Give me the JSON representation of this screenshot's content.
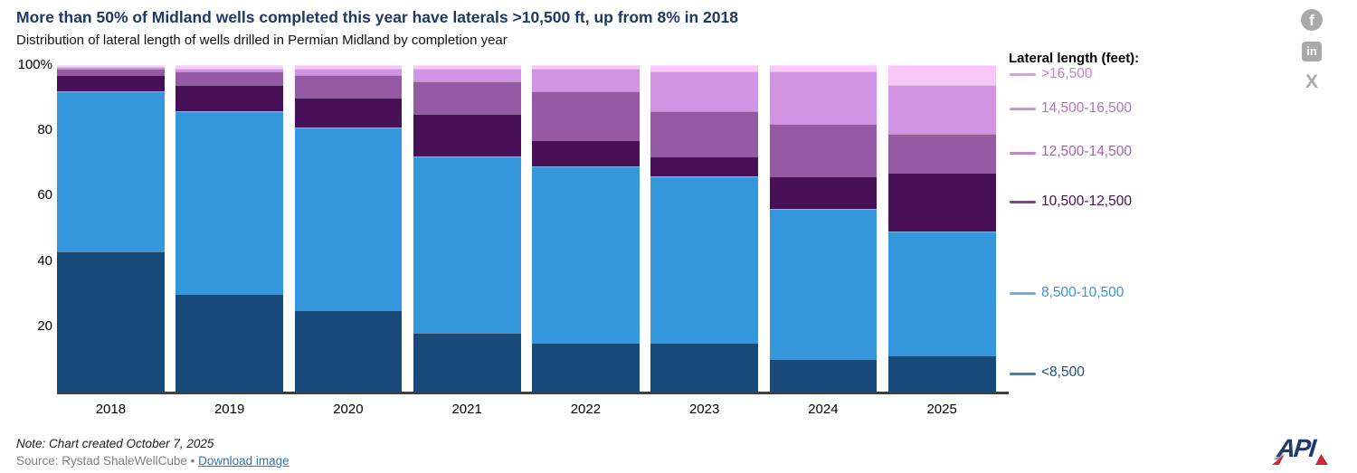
{
  "chart_data": {
    "type": "bar",
    "stacked": true,
    "percent": true,
    "title": "More than 50% of Midland wells completed this year have laterals >10,500 ft, up from 8% in 2018",
    "subtitle": "Distribution of lateral length of wells drilled in Permian Midland by completion year",
    "categories": [
      "2018",
      "2019",
      "2020",
      "2021",
      "2022",
      "2023",
      "2024",
      "2025"
    ],
    "series": [
      {
        "name": "<8,500",
        "color": "#17497B",
        "label_color": "#1F4E79",
        "values": [
          43,
          30,
          25,
          18,
          15,
          15,
          10,
          11
        ]
      },
      {
        "name": "8,500-10,500",
        "color": "#3597DB",
        "label_color": "#3E93D9",
        "values": [
          49,
          56,
          56,
          54,
          54,
          51,
          46,
          38
        ]
      },
      {
        "name": "10,500-12,500",
        "color": "#481056",
        "label_color": "#45104F",
        "values": [
          5,
          8,
          9,
          13,
          8,
          6,
          10,
          18
        ]
      },
      {
        "name": "12,500-14,500",
        "color": "#9659A4",
        "label_color": "#A75FB5",
        "values": [
          2,
          4,
          7,
          10,
          15,
          14,
          16,
          12
        ]
      },
      {
        "name": "14,500-16,500",
        "color": "#D193E2",
        "label_color": "#B571C4",
        "values": [
          0.5,
          1,
          2,
          4,
          7,
          12,
          16,
          15
        ]
      },
      {
        "name": ">16,500",
        "color": "#FAC7F9",
        "label_color": "#C77ED0",
        "values": [
          0.5,
          1,
          1,
          1,
          1,
          2,
          2,
          6
        ]
      }
    ],
    "ylim": [
      0,
      100
    ],
    "yticks": [
      {
        "value": 20,
        "label": "20"
      },
      {
        "value": 40,
        "label": "40"
      },
      {
        "value": 60,
        "label": "60"
      },
      {
        "value": 80,
        "label": "80"
      },
      {
        "value": 100,
        "label": "100%"
      }
    ],
    "grid": false,
    "legend_title": "Lateral length (feet):",
    "legend_position": "right"
  },
  "social": {
    "facebook_glyph": "f",
    "linkedin_glyph": "in",
    "x_glyph": "X"
  },
  "footer": {
    "note": "Note: Chart created October 7, 2025",
    "source": "Source: Rystad ShaleWellCube",
    "separator": "•",
    "download_label": "Download image"
  },
  "logo": {
    "label": "API"
  }
}
